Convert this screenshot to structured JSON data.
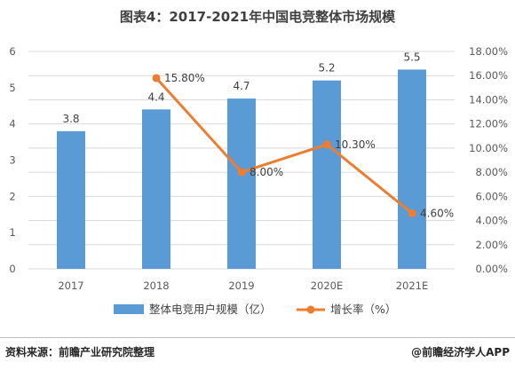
{
  "title": "图表4：2017-2021年中国电竞整体市场规模",
  "footer": {
    "source": "资料来源：前瞻产业研究院整理",
    "credit": "@前瞻经济学人APP"
  },
  "colors": {
    "bar": "#5b9bd5",
    "line": "#ed7d31",
    "grid": "#d9d9d9"
  },
  "chart_data": {
    "type": "bar",
    "categories": [
      "2017",
      "2018",
      "2019",
      "2020E",
      "2021E"
    ],
    "series": [
      {
        "name": "整体电竞用户规模（亿）",
        "type": "bar",
        "axis": "left",
        "values": [
          3.8,
          4.4,
          4.7,
          5.2,
          5.5
        ],
        "labels": [
          "3.8",
          "4.4",
          "4.7",
          "5.2",
          "5.5"
        ]
      },
      {
        "name": "增长率（%）",
        "type": "line",
        "axis": "right",
        "values": [
          null,
          15.8,
          8.0,
          10.3,
          4.6
        ],
        "labels": [
          "",
          "15.80%",
          "8.00%",
          "10.30%",
          "4.60%"
        ]
      }
    ],
    "y_left": {
      "min": 0,
      "max": 6,
      "step": 1,
      "ticks": [
        "0",
        "1",
        "2",
        "3",
        "4",
        "5",
        "6"
      ]
    },
    "y_right": {
      "min": 0,
      "max": 18,
      "step": 2,
      "ticks": [
        "0.00%",
        "2.00%",
        "4.00%",
        "6.00%",
        "8.00%",
        "10.00%",
        "12.00%",
        "14.00%",
        "16.00%",
        "18.00%"
      ]
    },
    "grid": true,
    "legend_position": "bottom"
  }
}
